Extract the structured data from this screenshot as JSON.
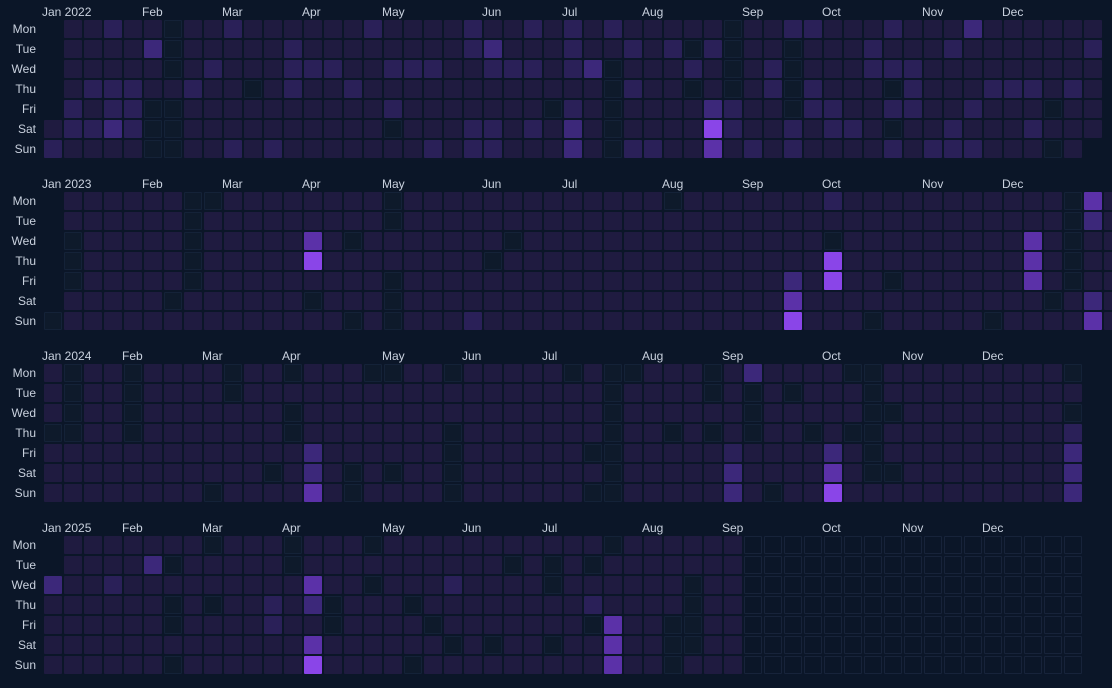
{
  "chart_data": {
    "type": "heatmap",
    "x_unit": "week",
    "row_labels": [
      "Mon",
      "Tue",
      "Wed",
      "Thu",
      "Fri",
      "Sat",
      "Sun"
    ],
    "scale_colors": {
      "empty": "#0e1a2b",
      "levels": [
        "#1f1b40",
        "#2a2058",
        "#3c287a",
        "#5b31a8",
        "#8a45e8"
      ]
    },
    "years": [
      {
        "label": "2022",
        "months": [
          {
            "label": "Jan 2022",
            "week": 0
          },
          {
            "label": "Feb",
            "week": 5
          },
          {
            "label": "Mar",
            "week": 9
          },
          {
            "label": "Apr",
            "week": 13
          },
          {
            "label": "May",
            "week": 17
          },
          {
            "label": "Jun",
            "week": 22
          },
          {
            "label": "Jul",
            "week": 26
          },
          {
            "label": "Aug",
            "week": 30
          },
          {
            "label": "Sep",
            "week": 35
          },
          {
            "label": "Oct",
            "week": 39
          },
          {
            "label": "Nov",
            "week": 44
          },
          {
            "label": "Dec",
            "week": 48
          }
        ],
        "first_week_start_row": 5,
        "weeks": 53,
        "last_week_end_row": 5,
        "base_level": 1,
        "highlights": [
          {
            "w": 33,
            "d": 5,
            "v": 5
          },
          {
            "w": 33,
            "d": 6,
            "v": 4
          },
          {
            "w": 33,
            "d": 4,
            "v": 3
          },
          {
            "w": 3,
            "d": 5,
            "v": 3
          },
          {
            "w": 46,
            "d": 0,
            "v": 3
          },
          {
            "w": 5,
            "d": 1,
            "v": 3
          },
          {
            "w": 22,
            "d": 1,
            "v": 3
          },
          {
            "w": 27,
            "d": 2,
            "v": 3
          },
          {
            "w": 26,
            "d": 5,
            "v": 3
          },
          {
            "w": 26,
            "d": 6,
            "v": 3
          }
        ],
        "empties": [
          {
            "w": 6,
            "d": 0
          },
          {
            "w": 6,
            "d": 1
          },
          {
            "w": 6,
            "d": 2
          },
          {
            "w": 6,
            "d": 4
          },
          {
            "w": 6,
            "d": 5
          },
          {
            "w": 6,
            "d": 6
          },
          {
            "w": 5,
            "d": 4
          },
          {
            "w": 5,
            "d": 5
          },
          {
            "w": 5,
            "d": 6
          },
          {
            "w": 10,
            "d": 3
          },
          {
            "w": 17,
            "d": 5
          },
          {
            "w": 25,
            "d": 4
          },
          {
            "w": 28,
            "d": 2
          },
          {
            "w": 28,
            "d": 3
          },
          {
            "w": 28,
            "d": 4
          },
          {
            "w": 28,
            "d": 5
          },
          {
            "w": 28,
            "d": 6
          },
          {
            "w": 32,
            "d": 1
          },
          {
            "w": 32,
            "d": 3
          },
          {
            "w": 34,
            "d": 0
          },
          {
            "w": 34,
            "d": 1
          },
          {
            "w": 34,
            "d": 2
          },
          {
            "w": 34,
            "d": 3
          },
          {
            "w": 37,
            "d": 1
          },
          {
            "w": 37,
            "d": 2
          },
          {
            "w": 37,
            "d": 3
          },
          {
            "w": 37,
            "d": 4
          },
          {
            "w": 42,
            "d": 3
          },
          {
            "w": 42,
            "d": 5
          },
          {
            "w": 50,
            "d": 4
          },
          {
            "w": 50,
            "d": 6
          }
        ]
      },
      {
        "label": "2023",
        "months": [
          {
            "label": "Jan 2023",
            "week": 0
          },
          {
            "label": "Feb",
            "week": 5
          },
          {
            "label": "Mar",
            "week": 9
          },
          {
            "label": "Apr",
            "week": 13
          },
          {
            "label": "May",
            "week": 17
          },
          {
            "label": "Jun",
            "week": 22
          },
          {
            "label": "Jul",
            "week": 26
          },
          {
            "label": "Aug",
            "week": 31
          },
          {
            "label": "Sep",
            "week": 35
          },
          {
            "label": "Oct",
            "week": 39
          },
          {
            "label": "Nov",
            "week": 44
          },
          {
            "label": "Dec",
            "week": 48
          }
        ],
        "first_week_start_row": 6,
        "weeks": 54,
        "last_week_end_row": 6,
        "base_level": 1,
        "highlights": [
          {
            "w": 13,
            "d": 2,
            "v": 4
          },
          {
            "w": 13,
            "d": 3,
            "v": 5
          },
          {
            "w": 37,
            "d": 5,
            "v": 4
          },
          {
            "w": 37,
            "d": 6,
            "v": 5
          },
          {
            "w": 37,
            "d": 4,
            "v": 3
          },
          {
            "w": 39,
            "d": 3,
            "v": 5
          },
          {
            "w": 39,
            "d": 4,
            "v": 5
          },
          {
            "w": 49,
            "d": 2,
            "v": 4
          },
          {
            "w": 49,
            "d": 3,
            "v": 4
          },
          {
            "w": 49,
            "d": 4,
            "v": 4
          },
          {
            "w": 52,
            "d": 0,
            "v": 4
          },
          {
            "w": 52,
            "d": 1,
            "v": 3
          },
          {
            "w": 52,
            "d": 5,
            "v": 3
          },
          {
            "w": 52,
            "d": 6,
            "v": 4
          },
          {
            "w": 21,
            "d": 6,
            "v": 2
          },
          {
            "w": 39,
            "d": 0,
            "v": 2
          }
        ],
        "empties": [
          {
            "w": 1,
            "d": 2
          },
          {
            "w": 1,
            "d": 3
          },
          {
            "w": 1,
            "d": 4
          },
          {
            "w": 0,
            "d": 6
          },
          {
            "w": 7,
            "d": 0
          },
          {
            "w": 7,
            "d": 1
          },
          {
            "w": 7,
            "d": 2
          },
          {
            "w": 7,
            "d": 3
          },
          {
            "w": 7,
            "d": 4
          },
          {
            "w": 6,
            "d": 5
          },
          {
            "w": 8,
            "d": 0
          },
          {
            "w": 13,
            "d": 5
          },
          {
            "w": 15,
            "d": 2
          },
          {
            "w": 15,
            "d": 6
          },
          {
            "w": 17,
            "d": 0
          },
          {
            "w": 17,
            "d": 1
          },
          {
            "w": 17,
            "d": 4
          },
          {
            "w": 17,
            "d": 5
          },
          {
            "w": 17,
            "d": 6
          },
          {
            "w": 22,
            "d": 3
          },
          {
            "w": 23,
            "d": 2
          },
          {
            "w": 31,
            "d": 0
          },
          {
            "w": 39,
            "d": 2
          },
          {
            "w": 41,
            "d": 6
          },
          {
            "w": 42,
            "d": 4
          },
          {
            "w": 47,
            "d": 6
          },
          {
            "w": 50,
            "d": 5
          },
          {
            "w": 51,
            "d": 0
          },
          {
            "w": 51,
            "d": 1
          },
          {
            "w": 51,
            "d": 2
          },
          {
            "w": 51,
            "d": 3
          },
          {
            "w": 51,
            "d": 4
          }
        ]
      },
      {
        "label": "2024",
        "months": [
          {
            "label": "Jan 2024",
            "week": 0
          },
          {
            "label": "Feb",
            "week": 4
          },
          {
            "label": "Mar",
            "week": 8
          },
          {
            "label": "Apr",
            "week": 12
          },
          {
            "label": "May",
            "week": 17
          },
          {
            "label": "Jun",
            "week": 21
          },
          {
            "label": "Jul",
            "week": 25
          },
          {
            "label": "Aug",
            "week": 30
          },
          {
            "label": "Sep",
            "week": 34
          },
          {
            "label": "Oct",
            "week": 39
          },
          {
            "label": "Nov",
            "week": 43
          },
          {
            "label": "Dec",
            "week": 47
          }
        ],
        "first_week_start_row": 0,
        "weeks": 52,
        "last_week_end_row": 6,
        "base_level": 1,
        "highlights": [
          {
            "w": 13,
            "d": 4,
            "v": 3
          },
          {
            "w": 13,
            "d": 5,
            "v": 3
          },
          {
            "w": 13,
            "d": 6,
            "v": 4
          },
          {
            "w": 35,
            "d": 0,
            "v": 3
          },
          {
            "w": 34,
            "d": 4,
            "v": 2
          },
          {
            "w": 34,
            "d": 5,
            "v": 3
          },
          {
            "w": 34,
            "d": 6,
            "v": 3
          },
          {
            "w": 39,
            "d": 4,
            "v": 3
          },
          {
            "w": 39,
            "d": 5,
            "v": 4
          },
          {
            "w": 39,
            "d": 6,
            "v": 5
          },
          {
            "w": 51,
            "d": 3,
            "v": 2
          },
          {
            "w": 51,
            "d": 4,
            "v": 3
          },
          {
            "w": 51,
            "d": 5,
            "v": 3
          },
          {
            "w": 51,
            "d": 6,
            "v": 3
          }
        ],
        "empties": [
          {
            "w": 1,
            "d": 0
          },
          {
            "w": 1,
            "d": 1
          },
          {
            "w": 1,
            "d": 2
          },
          {
            "w": 1,
            "d": 3
          },
          {
            "w": 0,
            "d": 3
          },
          {
            "w": 4,
            "d": 0
          },
          {
            "w": 4,
            "d": 1
          },
          {
            "w": 4,
            "d": 2
          },
          {
            "w": 4,
            "d": 3
          },
          {
            "w": 9,
            "d": 0
          },
          {
            "w": 9,
            "d": 1
          },
          {
            "w": 8,
            "d": 6
          },
          {
            "w": 12,
            "d": 0
          },
          {
            "w": 12,
            "d": 2
          },
          {
            "w": 12,
            "d": 3
          },
          {
            "w": 11,
            "d": 5
          },
          {
            "w": 15,
            "d": 5
          },
          {
            "w": 15,
            "d": 6
          },
          {
            "w": 16,
            "d": 0
          },
          {
            "w": 17,
            "d": 0
          },
          {
            "w": 17,
            "d": 5
          },
          {
            "w": 20,
            "d": 0
          },
          {
            "w": 20,
            "d": 3
          },
          {
            "w": 20,
            "d": 4
          },
          {
            "w": 20,
            "d": 5
          },
          {
            "w": 20,
            "d": 6
          },
          {
            "w": 26,
            "d": 0
          },
          {
            "w": 27,
            "d": 4
          },
          {
            "w": 27,
            "d": 6
          },
          {
            "w": 28,
            "d": 0
          },
          {
            "w": 28,
            "d": 1
          },
          {
            "w": 28,
            "d": 2
          },
          {
            "w": 28,
            "d": 3
          },
          {
            "w": 28,
            "d": 4
          },
          {
            "w": 28,
            "d": 5
          },
          {
            "w": 28,
            "d": 6
          },
          {
            "w": 29,
            "d": 0
          },
          {
            "w": 31,
            "d": 3
          },
          {
            "w": 33,
            "d": 0
          },
          {
            "w": 33,
            "d": 1
          },
          {
            "w": 33,
            "d": 3
          },
          {
            "w": 35,
            "d": 1
          },
          {
            "w": 35,
            "d": 2
          },
          {
            "w": 35,
            "d": 3
          },
          {
            "w": 36,
            "d": 6
          },
          {
            "w": 37,
            "d": 1
          },
          {
            "w": 38,
            "d": 3
          },
          {
            "w": 40,
            "d": 0
          },
          {
            "w": 40,
            "d": 3
          },
          {
            "w": 41,
            "d": 3
          },
          {
            "w": 41,
            "d": 0
          },
          {
            "w": 41,
            "d": 1
          },
          {
            "w": 41,
            "d": 2
          },
          {
            "w": 41,
            "d": 4
          },
          {
            "w": 41,
            "d": 5
          },
          {
            "w": 42,
            "d": 2
          },
          {
            "w": 42,
            "d": 5
          },
          {
            "w": 51,
            "d": 0
          },
          {
            "w": 51,
            "d": 2
          }
        ]
      },
      {
        "label": "2025",
        "months": [
          {
            "label": "Jan 2025",
            "week": 0
          },
          {
            "label": "Feb",
            "week": 4
          },
          {
            "label": "Mar",
            "week": 8
          },
          {
            "label": "Apr",
            "week": 12
          },
          {
            "label": "May",
            "week": 17
          },
          {
            "label": "Jun",
            "week": 21
          },
          {
            "label": "Jul",
            "week": 25
          },
          {
            "label": "Aug",
            "week": 30
          },
          {
            "label": "Sep",
            "week": 34
          },
          {
            "label": "Oct",
            "week": 39
          },
          {
            "label": "Nov",
            "week": 43
          },
          {
            "label": "Dec",
            "week": 47
          }
        ],
        "first_week_start_row": 2,
        "weeks": 52,
        "last_week_end_row": 6,
        "base_level": 1,
        "filled_until_week": 34,
        "filled_until_row": 6,
        "highlights": [
          {
            "w": 0,
            "d": 2,
            "v": 3
          },
          {
            "w": 5,
            "d": 1,
            "v": 3
          },
          {
            "w": 3,
            "d": 2,
            "v": 2
          },
          {
            "w": 13,
            "d": 2,
            "v": 4
          },
          {
            "w": 13,
            "d": 3,
            "v": 3
          },
          {
            "w": 13,
            "d": 5,
            "v": 4
          },
          {
            "w": 13,
            "d": 6,
            "v": 5
          },
          {
            "w": 11,
            "d": 3,
            "v": 2
          },
          {
            "w": 11,
            "d": 4,
            "v": 2
          },
          {
            "w": 20,
            "d": 2,
            "v": 2
          },
          {
            "w": 27,
            "d": 3,
            "v": 2
          },
          {
            "w": 28,
            "d": 4,
            "v": 4
          },
          {
            "w": 28,
            "d": 5,
            "v": 4
          },
          {
            "w": 28,
            "d": 6,
            "v": 4
          }
        ],
        "empties": [
          {
            "w": 6,
            "d": 1
          },
          {
            "w": 6,
            "d": 3
          },
          {
            "w": 6,
            "d": 4
          },
          {
            "w": 6,
            "d": 6
          },
          {
            "w": 8,
            "d": 0
          },
          {
            "w": 8,
            "d": 3
          },
          {
            "w": 12,
            "d": 0
          },
          {
            "w": 12,
            "d": 1
          },
          {
            "w": 14,
            "d": 3
          },
          {
            "w": 14,
            "d": 4
          },
          {
            "w": 16,
            "d": 0
          },
          {
            "w": 16,
            "d": 2
          },
          {
            "w": 18,
            "d": 3
          },
          {
            "w": 18,
            "d": 6
          },
          {
            "w": 19,
            "d": 4
          },
          {
            "w": 20,
            "d": 5
          },
          {
            "w": 22,
            "d": 5
          },
          {
            "w": 23,
            "d": 1
          },
          {
            "w": 25,
            "d": 1
          },
          {
            "w": 25,
            "d": 2
          },
          {
            "w": 25,
            "d": 5
          },
          {
            "w": 27,
            "d": 1
          },
          {
            "w": 27,
            "d": 4
          },
          {
            "w": 28,
            "d": 0
          },
          {
            "w": 31,
            "d": 4
          },
          {
            "w": 31,
            "d": 5
          },
          {
            "w": 31,
            "d": 6
          },
          {
            "w": 32,
            "d": 2
          },
          {
            "w": 32,
            "d": 3
          },
          {
            "w": 32,
            "d": 4
          },
          {
            "w": 32,
            "d": 5
          }
        ]
      }
    ]
  }
}
